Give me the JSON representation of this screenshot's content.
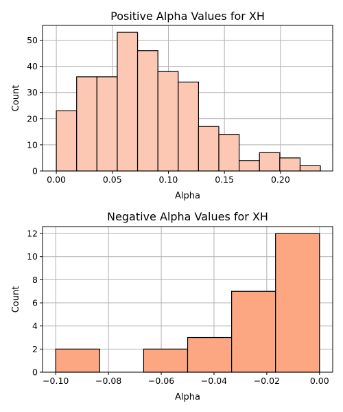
{
  "chart_data": [
    {
      "type": "bar",
      "title": "Positive Alpha Values for XH",
      "xlabel": "Alpha",
      "ylabel": "Count",
      "color": "#fcc8b4",
      "xlim": [
        -0.0123,
        0.2466
      ],
      "ylim": [
        0,
        55.65
      ],
      "grid": true,
      "bins": [
        {
          "x0": 0.0,
          "x1": 0.01813,
          "count": 23
        },
        {
          "x0": 0.01813,
          "x1": 0.03625,
          "count": 36
        },
        {
          "x0": 0.03625,
          "x1": 0.05438,
          "count": 36
        },
        {
          "x0": 0.05438,
          "x1": 0.0725,
          "count": 53
        },
        {
          "x0": 0.0725,
          "x1": 0.09063,
          "count": 46
        },
        {
          "x0": 0.09063,
          "x1": 0.10875,
          "count": 38
        },
        {
          "x0": 0.10875,
          "x1": 0.12688,
          "count": 34
        },
        {
          "x0": 0.12688,
          "x1": 0.145,
          "count": 17
        },
        {
          "x0": 0.145,
          "x1": 0.16313,
          "count": 14
        },
        {
          "x0": 0.16313,
          "x1": 0.18125,
          "count": 4
        },
        {
          "x0": 0.18125,
          "x1": 0.19938,
          "count": 7
        },
        {
          "x0": 0.19938,
          "x1": 0.2175,
          "count": 5
        },
        {
          "x0": 0.2175,
          "x1": 0.23563,
          "count": 2
        }
      ],
      "xticks": [
        {
          "v": 0.0,
          "label": "0.00"
        },
        {
          "v": 0.05,
          "label": "0.05"
        },
        {
          "v": 0.1,
          "label": "0.10"
        },
        {
          "v": 0.15,
          "label": "0.15"
        },
        {
          "v": 0.2,
          "label": "0.20"
        }
      ],
      "yticks": [
        {
          "v": 0,
          "label": "0"
        },
        {
          "v": 10,
          "label": "10"
        },
        {
          "v": 20,
          "label": "20"
        },
        {
          "v": 30,
          "label": "30"
        },
        {
          "v": 40,
          "label": "40"
        },
        {
          "v": 50,
          "label": "50"
        }
      ]
    },
    {
      "type": "bar",
      "title": "Negative Alpha Values for XH",
      "xlabel": "Alpha",
      "ylabel": "Count",
      "color": "#fca682",
      "xlim": [
        -0.105,
        0.005
      ],
      "ylim": [
        0,
        12.6
      ],
      "grid": true,
      "bins": [
        {
          "x0": -0.1,
          "x1": -0.08333,
          "count": 2
        },
        {
          "x0": -0.08333,
          "x1": -0.06667,
          "count": 0
        },
        {
          "x0": -0.06667,
          "x1": -0.05,
          "count": 2
        },
        {
          "x0": -0.05,
          "x1": -0.03333,
          "count": 3
        },
        {
          "x0": -0.03333,
          "x1": -0.01667,
          "count": 7
        },
        {
          "x0": -0.01667,
          "x1": 0.0,
          "count": 12
        }
      ],
      "xticks": [
        {
          "v": -0.1,
          "label": "−0.10"
        },
        {
          "v": -0.08,
          "label": "−0.08"
        },
        {
          "v": -0.06,
          "label": "−0.06"
        },
        {
          "v": -0.04,
          "label": "−0.04"
        },
        {
          "v": -0.02,
          "label": "−0.02"
        },
        {
          "v": 0.0,
          "label": "0.00"
        }
      ],
      "yticks": [
        {
          "v": 0,
          "label": "0"
        },
        {
          "v": 2,
          "label": "2"
        },
        {
          "v": 4,
          "label": "4"
        },
        {
          "v": 6,
          "label": "6"
        },
        {
          "v": 8,
          "label": "8"
        },
        {
          "v": 10,
          "label": "10"
        },
        {
          "v": 12,
          "label": "12"
        }
      ]
    }
  ]
}
